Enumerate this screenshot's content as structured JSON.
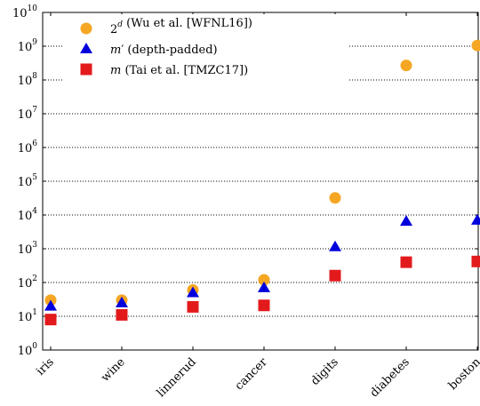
{
  "chart_data": {
    "type": "scatter",
    "categories": [
      "iris",
      "wine",
      "linnerud",
      "cancer",
      "digits",
      "diabetes",
      "boston"
    ],
    "y_scale": "log",
    "ylim": [
      1,
      10000000000
    ],
    "y_ticks": [
      1,
      10,
      100,
      1000,
      10000,
      100000,
      1000000,
      10000000,
      100000000,
      1000000000,
      10000000000
    ],
    "y_tick_labels": [
      {
        "base": "10",
        "exp": "0"
      },
      {
        "base": "10",
        "exp": "1"
      },
      {
        "base": "10",
        "exp": "2"
      },
      {
        "base": "10",
        "exp": "3"
      },
      {
        "base": "10",
        "exp": "4"
      },
      {
        "base": "10",
        "exp": "5"
      },
      {
        "base": "10",
        "exp": "6"
      },
      {
        "base": "10",
        "exp": "7"
      },
      {
        "base": "10",
        "exp": "8"
      },
      {
        "base": "10",
        "exp": "9"
      },
      {
        "base": "10",
        "exp": "10"
      }
    ],
    "grid": "horizontal dotted",
    "legend_position": "top-left",
    "series": [
      {
        "name": "2^d (Wu et al. [WFNL16])",
        "label_parts": [
          {
            "t": "2",
            "style": "normal"
          },
          {
            "t": "d",
            "style": "sup-italic"
          },
          {
            "t": " (Wu et al. [WFNL16])",
            "style": "normal"
          }
        ],
        "marker": "circle",
        "color": "#f5a623",
        "values": [
          30,
          30,
          60,
          120,
          32000,
          270000000,
          1050000000
        ]
      },
      {
        "name": "m' (depth-padded)",
        "label_parts": [
          {
            "t": "m",
            "style": "italic"
          },
          {
            "t": "′",
            "style": "normal"
          },
          {
            "t": " (depth-padded)",
            "style": "normal"
          }
        ],
        "marker": "triangle",
        "color": "#0000dd",
        "values": [
          20,
          25,
          50,
          70,
          1150,
          6500,
          7000
        ]
      },
      {
        "name": "m (Tai et al. [TMZC17])",
        "label_parts": [
          {
            "t": "m",
            "style": "italic"
          },
          {
            "t": " (Tai et al. [TMZC17])",
            "style": "normal"
          }
        ],
        "marker": "square",
        "color": "#e31a1c",
        "values": [
          8,
          11,
          19,
          21,
          160,
          400,
          420
        ]
      }
    ]
  }
}
